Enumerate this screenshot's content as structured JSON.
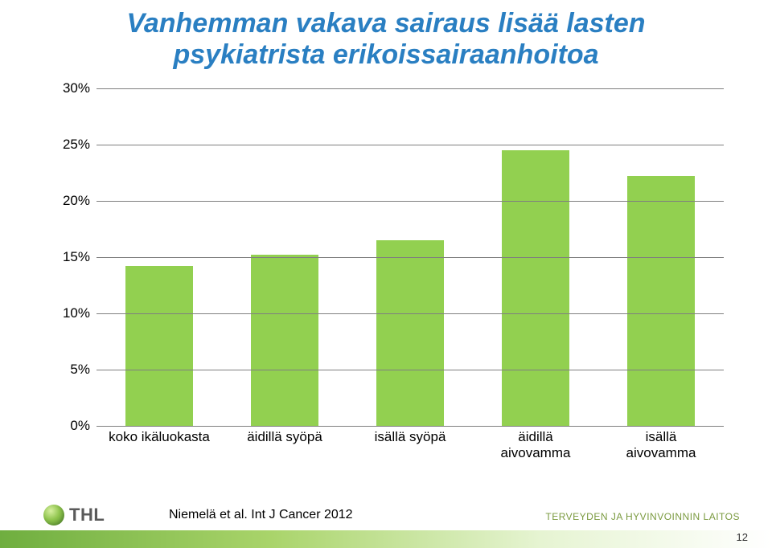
{
  "title": {
    "line1": "Vanhemman vakava sairaus lisää lasten",
    "line2": "psykiatrista erikoissairaanhoitoa",
    "color": "#2a7fc2",
    "fontsize": 34,
    "italic": true,
    "bold": true
  },
  "chart": {
    "type": "bar",
    "categories": [
      "koko ikäluokasta",
      "äidillä syöpä",
      "isällä syöpä",
      "äidillä\naivovamma",
      "isällä\naivovamma"
    ],
    "values": [
      14.2,
      15.2,
      16.5,
      24.5,
      22.2
    ],
    "bar_color": "#92d050",
    "background_color": "#ffffff",
    "gridline_color": "#7f7f7f",
    "ylim": [
      0,
      30
    ],
    "ytick_step": 5,
    "ytick_labels": [
      "0%",
      "5%",
      "10%",
      "15%",
      "20%",
      "25%",
      "30%"
    ],
    "bar_width_ratio": 0.54,
    "label_fontsize": 17,
    "label_color": "#000000"
  },
  "footer": {
    "citation": "Niemelä et al. Int J Cancer 2012",
    "logo_text": "THL",
    "org_text": "TERVEYDEN JA HYVINVOINNIN LAITOS",
    "page_number": "12"
  }
}
